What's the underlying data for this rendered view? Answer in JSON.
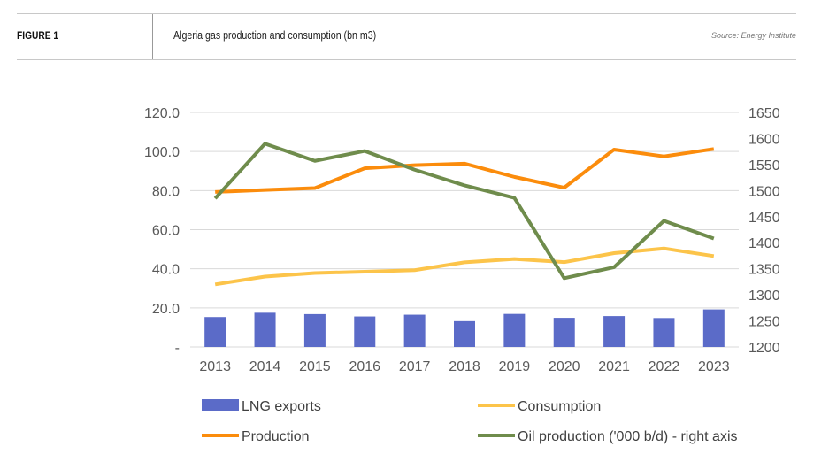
{
  "header": {
    "figure_label": "FIGURE 1",
    "title": "Algeria gas production and consumption (bn m3)",
    "source": "Source: Energy Institute"
  },
  "chart_data": {
    "type": "bar+line",
    "title": "Algeria gas production and consumption (bn m3)",
    "categories": [
      "2013",
      "2014",
      "2015",
      "2016",
      "2017",
      "2018",
      "2019",
      "2020",
      "2021",
      "2022",
      "2023"
    ],
    "y_left": {
      "range": [
        0,
        120
      ],
      "ticks": [
        "-",
        "20.0",
        "40.0",
        "60.0",
        "80.0",
        "100.0",
        "120.0"
      ]
    },
    "y_right": {
      "range": [
        1200,
        1650
      ],
      "ticks": [
        "1200",
        "1250",
        "1300",
        "1350",
        "1400",
        "1450",
        "1500",
        "1550",
        "1600",
        "1650"
      ]
    },
    "grid": true,
    "legend_position": "bottom",
    "series": [
      {
        "name": "LNG exports",
        "type": "bar",
        "axis": "left",
        "color": "#5b6bc8",
        "values": [
          15.3,
          17.5,
          16.8,
          15.6,
          16.5,
          13.2,
          16.9,
          14.9,
          15.8,
          14.8,
          19.2
        ]
      },
      {
        "name": "Consumption",
        "type": "line",
        "axis": "left",
        "color": "#fcc44a",
        "values": [
          32.0,
          36.0,
          37.8,
          38.5,
          39.3,
          43.3,
          45.0,
          43.4,
          48.0,
          50.4,
          46.5
        ]
      },
      {
        "name": "Production",
        "type": "line",
        "axis": "left",
        "color": "#fb8c0c",
        "values": [
          79.3,
          80.3,
          81.3,
          91.4,
          93.0,
          93.8,
          87.0,
          81.5,
          101.0,
          97.5,
          101.3
        ]
      },
      {
        "name": "Oil production ('000 b/d) - right axis",
        "type": "line",
        "axis": "right",
        "color": "#6f8c4c",
        "values": [
          1485,
          1590,
          1557,
          1576,
          1540,
          1510,
          1486,
          1332,
          1353,
          1442,
          1408
        ]
      }
    ]
  }
}
